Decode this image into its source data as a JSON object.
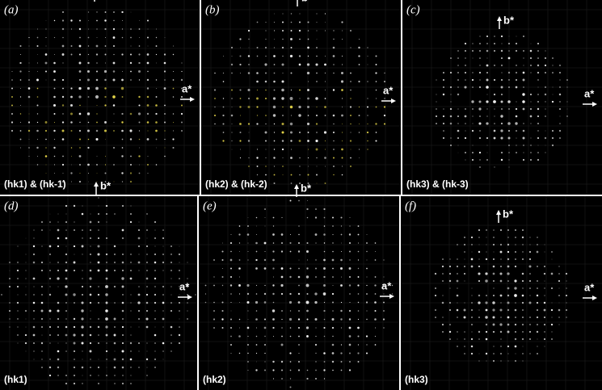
{
  "panels": [
    {
      "label": "(a)",
      "plane": "(hk1) & (hk-1)",
      "a_axis": "a*",
      "b_axis": "b*"
    },
    {
      "label": "(b)",
      "plane": "(hk2) & (hk-2)",
      "a_axis": "a*",
      "b_axis": "b*"
    },
    {
      "label": "(c)",
      "plane": "(hk3) & (hk-3)",
      "a_axis": "a*",
      "b_axis": "b*"
    },
    {
      "label": "(d)",
      "plane": "(hk1)",
      "a_axis": "a*",
      "b_axis": "b*"
    },
    {
      "label": "(e)",
      "plane": "(hk2)",
      "a_axis": "a*",
      "b_axis": "b*"
    },
    {
      "label": "(f)",
      "plane": "(hk3)",
      "a_axis": "a*",
      "b_axis": "b*"
    }
  ]
}
